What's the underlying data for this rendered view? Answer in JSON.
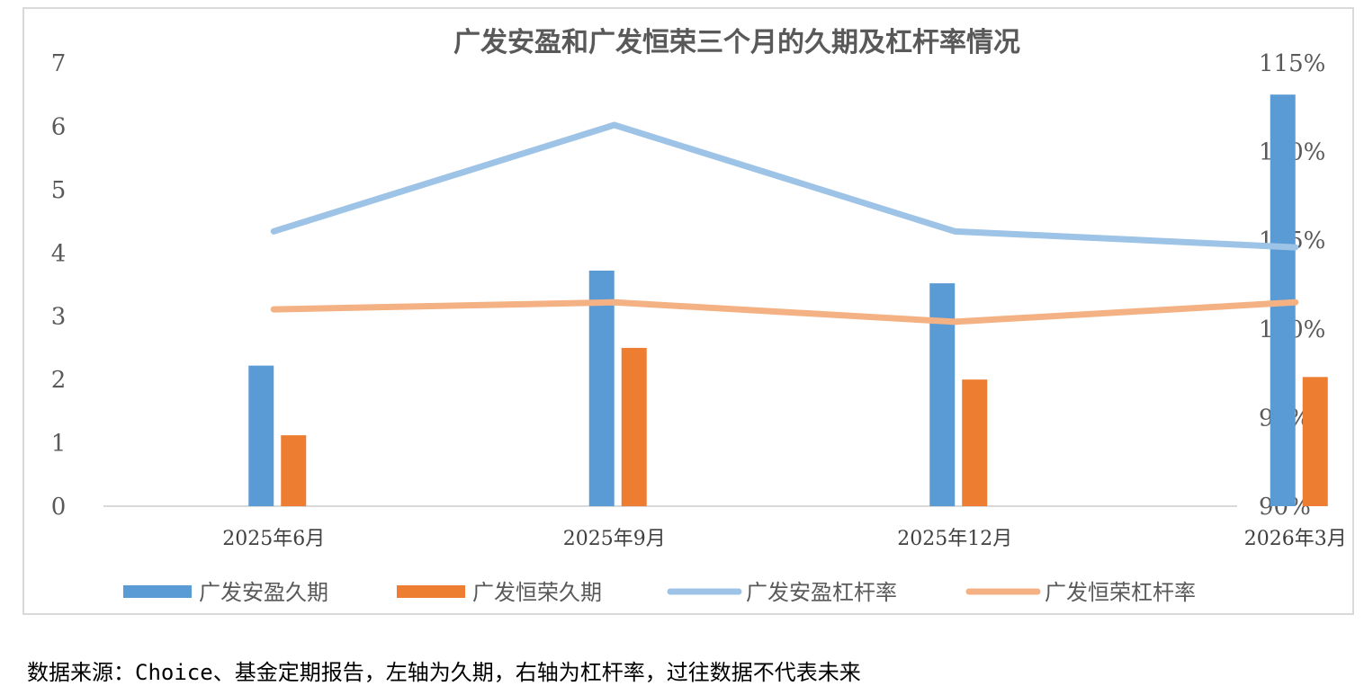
{
  "chart_data": {
    "type": "bar",
    "title": "广发安盈和广发恒荣三个月的久期及杠杆率情况",
    "categories": [
      "2025年6月",
      "2025年9月",
      "2025年12月",
      "2026年3月"
    ],
    "left_axis": {
      "min": 0,
      "max": 7,
      "ticks": [
        "0",
        "1",
        "2",
        "3",
        "4",
        "5",
        "6",
        "7"
      ]
    },
    "right_axis": {
      "min": 90,
      "max": 115,
      "ticks": [
        "90%",
        "95%",
        "100%",
        "105%",
        "110%",
        "115%"
      ]
    },
    "grid": false,
    "legend_position": "bottom",
    "series": [
      {
        "name": "广发安盈久期",
        "kind": "bar",
        "axis": "left",
        "color": "#5b9bd5",
        "values": [
          2.22,
          3.72,
          3.52,
          6.5
        ]
      },
      {
        "name": "广发恒荣久期",
        "kind": "bar",
        "axis": "left",
        "color": "#ed7d31",
        "values": [
          1.12,
          2.5,
          2.0,
          2.04
        ]
      },
      {
        "name": "广发安盈杠杆率",
        "kind": "line",
        "axis": "right",
        "color": "#9dc3e6",
        "values": [
          105.5,
          111.5,
          105.5,
          104.6
        ]
      },
      {
        "name": "广发恒荣杠杆率",
        "kind": "line",
        "axis": "right",
        "color": "#f4b183",
        "values": [
          101.1,
          101.5,
          100.4,
          101.5
        ]
      }
    ]
  },
  "footnote": "数据来源：Choice、基金定期报告，左轴为久期，右轴为杠杆率，过往数据不代表未来"
}
